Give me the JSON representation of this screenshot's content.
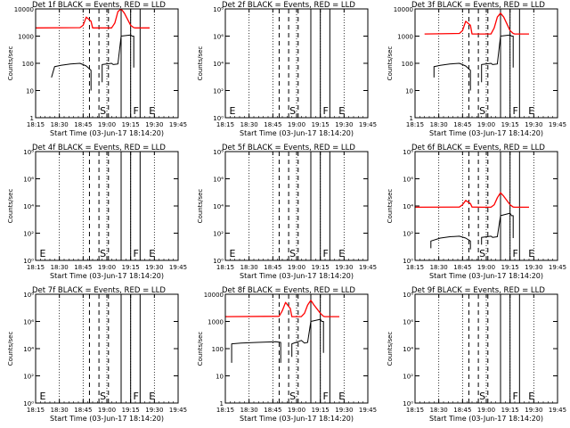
{
  "chart_data": [
    {
      "type": "line",
      "panel": 1,
      "title": "Det 1f BLACK = Events, RED = LLD",
      "xlabel": "Start Time (03-Jun-17 18:14:20)",
      "ylabel": "Counts/sec",
      "yscale": "log",
      "ylim": [
        1,
        10000
      ],
      "ytick_labels": [
        "1",
        "10",
        "100",
        "1000",
        "10000"
      ],
      "xlim": [
        0,
        45
      ],
      "xtick_labels": [
        "18:15",
        "18:30",
        "18:45",
        "19:00",
        "19:15",
        "19:30",
        "19:45"
      ],
      "markers": [
        {
          "x": 20,
          "label": "S"
        },
        {
          "x": 30.5,
          "label": "F"
        },
        {
          "x": 35.5,
          "label": "E"
        }
      ],
      "series": [
        {
          "name": "BLACK = Events",
          "color": "#000000",
          "x": [
            5,
            6,
            8,
            11,
            14,
            16,
            17.5,
            17.5
          ],
          "y": [
            30,
            75,
            85,
            95,
            100,
            80,
            55,
            10
          ]
        },
        {
          "name": "BLACK = Events",
          "color": "#000000",
          "x": [
            21,
            21,
            24,
            24.5,
            26,
            27,
            30,
            30.5,
            31,
            31
          ],
          "y": [
            20,
            90,
            100,
            90,
            95,
            1000,
            1100,
            1000,
            1000,
            70
          ]
        },
        {
          "name": "RED = LLD",
          "color": "#ff0000",
          "x": [
            0,
            14,
            15,
            16,
            17.5,
            18,
            21,
            24,
            25,
            26,
            27,
            28,
            30,
            31,
            31.5,
            36
          ],
          "y": [
            2000,
            2050,
            2500,
            5000,
            3500,
            2000,
            2000,
            2000,
            3000,
            8000,
            10000,
            7000,
            2500,
            2050,
            2000,
            2000
          ]
        }
      ]
    },
    {
      "type": "line",
      "panel": 2,
      "title": "Det 2f BLACK = Events, RED = LLD",
      "xlabel": "Start Time (03-Jun-17 18:14:20)",
      "ylabel": "Counts/sec",
      "yscale": "log",
      "ylim": [
        1,
        1000000000
      ],
      "ytick_labels": [
        "10⁰",
        "10²",
        "10⁴",
        "10⁶",
        "10⁸"
      ],
      "xlim": [
        0,
        45
      ],
      "xtick_labels": [
        "18:15",
        "18:30",
        "18:45",
        "19:00",
        "19:15",
        "19:30",
        "19:45"
      ],
      "markers": [
        {
          "x": 1,
          "label": "E"
        },
        {
          "x": 20,
          "label": "S"
        },
        {
          "x": 30.5,
          "label": "F"
        },
        {
          "x": 35.5,
          "label": "E"
        }
      ],
      "series": []
    },
    {
      "type": "line",
      "panel": 3,
      "title": "Det 3f BLACK = Events, RED = LLD",
      "xlabel": "Start Time (03-Jun-17 18:14:20)",
      "ylabel": "Counts/sec",
      "yscale": "log",
      "ylim": [
        1,
        10000
      ],
      "ytick_labels": [
        "1",
        "10",
        "100",
        "1000",
        "10000"
      ],
      "xlim": [
        0,
        45
      ],
      "xtick_labels": [
        "18:15",
        "18:30",
        "18:45",
        "19:00",
        "19:15",
        "19:30",
        "19:45"
      ],
      "markers": [
        {
          "x": 20,
          "label": "S"
        },
        {
          "x": 30.5,
          "label": "F"
        },
        {
          "x": 35.5,
          "label": "E"
        }
      ],
      "series": [
        {
          "name": "BLACK = Events",
          "color": "#000000",
          "x": [
            6,
            6,
            8,
            11,
            14,
            16,
            17.5,
            17.5
          ],
          "y": [
            30,
            75,
            85,
            95,
            100,
            80,
            55,
            10
          ]
        },
        {
          "name": "BLACK = Events",
          "color": "#000000",
          "x": [
            21,
            21,
            24,
            24.5,
            26,
            27,
            30,
            30.5,
            31,
            31
          ],
          "y": [
            20,
            90,
            100,
            90,
            95,
            1000,
            1100,
            1000,
            1000,
            70
          ]
        },
        {
          "name": "RED = LLD",
          "color": "#ff0000",
          "x": [
            3,
            14,
            15,
            16,
            17.5,
            18,
            21,
            24,
            25,
            26,
            27,
            28,
            30,
            31,
            31.5,
            36
          ],
          "y": [
            1200,
            1250,
            1600,
            3500,
            2500,
            1200,
            1200,
            1200,
            2000,
            5000,
            7000,
            5000,
            1600,
            1250,
            1200,
            1200
          ]
        }
      ]
    },
    {
      "type": "line",
      "panel": 4,
      "title": "Det 4f BLACK = Events, RED = LLD",
      "xlabel": "Start Time (03-Jun-17 18:14:20)",
      "ylabel": "Counts/sec",
      "yscale": "log",
      "ylim": [
        1,
        1000000000
      ],
      "ytick_labels": [
        "10⁰",
        "10²",
        "10⁴",
        "10⁶",
        "10⁸"
      ],
      "xlim": [
        0,
        45
      ],
      "xtick_labels": [
        "18:15",
        "18:30",
        "18:45",
        "19:00",
        "19:15",
        "19:30",
        "19:45"
      ],
      "markers": [
        {
          "x": 1,
          "label": "E"
        },
        {
          "x": 20,
          "label": "S"
        },
        {
          "x": 30.5,
          "label": "F"
        },
        {
          "x": 35.5,
          "label": "E"
        }
      ],
      "series": []
    },
    {
      "type": "line",
      "panel": 5,
      "title": "Det 5f BLACK = Events, RED = LLD",
      "xlabel": "Start Time (03-Jun-17 18:14:20)",
      "ylabel": "Counts/sec",
      "yscale": "log",
      "ylim": [
        1,
        1000000000
      ],
      "ytick_labels": [
        "10⁰",
        "10²",
        "10⁴",
        "10⁶",
        "10⁸"
      ],
      "xlim": [
        0,
        45
      ],
      "xtick_labels": [
        "18:15",
        "18:30",
        "18:45",
        "19:00",
        "19:15",
        "19:30",
        "19:45"
      ],
      "markers": [
        {
          "x": 1,
          "label": "E"
        },
        {
          "x": 20,
          "label": "S"
        },
        {
          "x": 30.5,
          "label": "F"
        },
        {
          "x": 35.5,
          "label": "E"
        }
      ],
      "series": []
    },
    {
      "type": "line",
      "panel": 6,
      "title": "Det 6f BLACK = Events, RED = LLD",
      "xlabel": "Start Time (03-Jun-17 18:14:20)",
      "ylabel": "Counts/sec",
      "yscale": "log",
      "ylim": [
        1,
        1000000000
      ],
      "ytick_labels": [
        "10⁰",
        "10²",
        "10⁴",
        "10⁶",
        "10⁸"
      ],
      "xlim": [
        0,
        45
      ],
      "xtick_labels": [
        "18:15",
        "18:30",
        "18:45",
        "19:00",
        "19:15",
        "19:30",
        "19:45"
      ],
      "markers": [
        {
          "x": 20,
          "label": "S"
        },
        {
          "x": 30.5,
          "label": "F"
        },
        {
          "x": 35.5,
          "label": "E"
        }
      ],
      "series": [
        {
          "name": "BLACK = Events",
          "color": "#000000",
          "x": [
            5,
            5,
            8,
            11,
            14,
            16,
            17.5,
            17.5
          ],
          "y": [
            10,
            40,
            70,
            90,
            100,
            70,
            40,
            8
          ]
        },
        {
          "name": "BLACK = Events",
          "color": "#000000",
          "x": [
            21,
            21,
            24,
            24.5,
            26,
            27,
            30,
            30.5,
            31,
            31
          ],
          "y": [
            20,
            80,
            100,
            80,
            90,
            5000,
            8000,
            5000,
            5000,
            70
          ]
        },
        {
          "name": "RED = LLD",
          "color": "#ff0000",
          "x": [
            0,
            14,
            15,
            16,
            17.5,
            18,
            21,
            24,
            25,
            26,
            27,
            28,
            30,
            31,
            31.5,
            36
          ],
          "y": [
            25000,
            26000,
            40000,
            90000,
            50000,
            26000,
            25000,
            25000,
            40000,
            150000,
            400000,
            200000,
            40000,
            26000,
            25000,
            25000
          ]
        }
      ]
    },
    {
      "type": "line",
      "panel": 7,
      "title": "Det 7f BLACK = Events, RED = LLD",
      "xlabel": "Start Time (03-Jun-17 18:14:20)",
      "ylabel": "Counts/sec",
      "yscale": "log",
      "ylim": [
        1,
        1000000000
      ],
      "ytick_labels": [
        "10⁰",
        "10²",
        "10⁴",
        "10⁶",
        "10⁸"
      ],
      "xlim": [
        0,
        45
      ],
      "xtick_labels": [
        "18:15",
        "18:30",
        "18:45",
        "19:00",
        "19:15",
        "19:30",
        "19:45"
      ],
      "markers": [
        {
          "x": 1,
          "label": "E"
        },
        {
          "x": 20,
          "label": "S"
        },
        {
          "x": 30.5,
          "label": "F"
        },
        {
          "x": 35.5,
          "label": "E"
        }
      ],
      "series": []
    },
    {
      "type": "line",
      "panel": 8,
      "title": "Det 8f BLACK = Events, RED = LLD",
      "xlabel": "Start Time (03-Jun-17 18:14:20)",
      "ylabel": "Counts/sec",
      "yscale": "log",
      "ylim": [
        1,
        10000
      ],
      "ytick_labels": [
        "1",
        "10",
        "100",
        "1000",
        "10000"
      ],
      "xlim": [
        0,
        45
      ],
      "xtick_labels": [
        "18:15",
        "18:30",
        "18:45",
        "19:00",
        "19:15",
        "19:30",
        "19:45"
      ],
      "markers": [
        {
          "x": 20,
          "label": "S"
        },
        {
          "x": 30.5,
          "label": "F"
        },
        {
          "x": 35.5,
          "label": "E"
        }
      ],
      "series": [
        {
          "name": "BLACK = Events",
          "color": "#000000",
          "x": [
            2,
            2,
            5,
            10,
            16,
            17.5,
            17.5
          ],
          "y": [
            30,
            150,
            160,
            170,
            180,
            170,
            30
          ]
        },
        {
          "name": "BLACK = Events",
          "color": "#000000",
          "x": [
            21,
            21,
            24,
            25,
            26,
            27,
            30,
            30.5,
            31,
            31
          ],
          "y": [
            50,
            150,
            200,
            160,
            170,
            1000,
            1200,
            1000,
            1000,
            70
          ]
        },
        {
          "name": "RED = LLD",
          "color": "#ff0000",
          "x": [
            0,
            17,
            18,
            19,
            20.5,
            21,
            24,
            25,
            26,
            27,
            28,
            30,
            31,
            31.5,
            36
          ],
          "y": [
            1500,
            1550,
            2500,
            5000,
            3000,
            1500,
            1500,
            2000,
            4000,
            6000,
            4000,
            2000,
            1550,
            1500,
            1500
          ]
        }
      ]
    },
    {
      "type": "line",
      "panel": 9,
      "title": "Det 9f BLACK = Events, RED = LLD",
      "xlabel": "Start Time (03-Jun-17 18:14:20)",
      "ylabel": "Counts/sec",
      "yscale": "log",
      "ylim": [
        1,
        1000000000
      ],
      "ytick_labels": [
        "10⁰",
        "10²",
        "10⁴",
        "10⁶",
        "10⁸"
      ],
      "xlim": [
        0,
        45
      ],
      "xtick_labels": [
        "18:15",
        "18:30",
        "18:45",
        "19:00",
        "19:15",
        "19:30",
        "19:45"
      ],
      "markers": [
        {
          "x": 20,
          "label": "S"
        },
        {
          "x": 30.5,
          "label": "F"
        },
        {
          "x": 35.5,
          "label": "E"
        }
      ],
      "series": []
    }
  ]
}
